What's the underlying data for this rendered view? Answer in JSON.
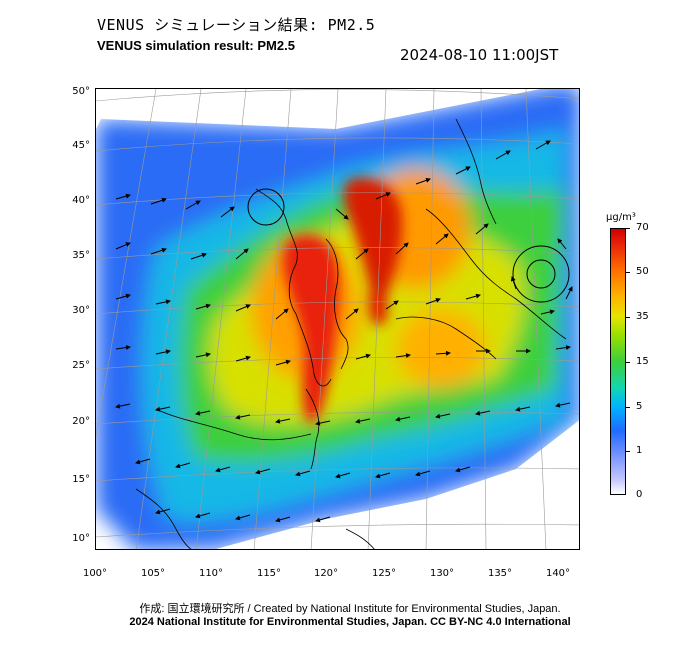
{
  "title_jp": "VENUS シミュレーション結果: PM2.5",
  "title_en": "VENUS simulation result: PM2.5",
  "timestamp": "2024-08-10 11:00JST",
  "axes": {
    "lat_labels": [
      "50°",
      "45°",
      "40°",
      "35°",
      "30°",
      "25°",
      "20°",
      "15°",
      "10°"
    ],
    "lon_labels": [
      "100°",
      "105°",
      "110°",
      "115°",
      "120°",
      "125°",
      "130°",
      "135°",
      "140°"
    ]
  },
  "colorbar": {
    "unit": "μg/m³",
    "labels": [
      "70",
      "50",
      "35",
      "15",
      "5",
      "1",
      "0"
    ],
    "colors": [
      "#ffffff",
      "#c8c8ff",
      "#1f6bff",
      "#00b4ff",
      "#3ccf3c",
      "#e6e400",
      "#ff6a00",
      "#d00000"
    ]
  },
  "credit_line": "作成: 国立環境研究所 / Created by National Institute for Environmental Studies, Japan.",
  "copyright_line": "2024 National Institute for Environmental Studies, Japan. CC BY-NC 4.0 International"
}
